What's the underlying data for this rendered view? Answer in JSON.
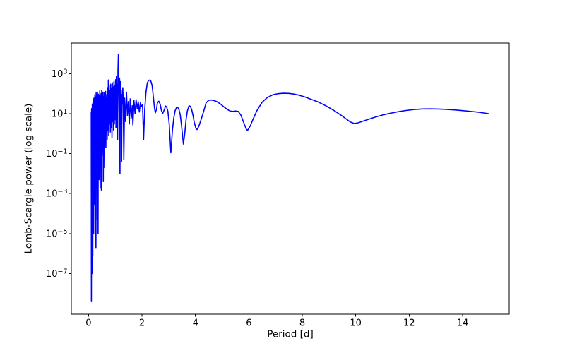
{
  "figure": {
    "background_color": "#ffffff",
    "axis_color": "#000000",
    "line_color": "#0000ff"
  },
  "chart_data": {
    "type": "line",
    "title": "",
    "xlabel": "Period [d]",
    "ylabel": "Lomb-Scargle power (log scale)",
    "yscale": "log",
    "grid": false,
    "legend": null,
    "xlim": [
      -0.645,
      15.745
    ],
    "ylog_lim": [
      -9.03,
      4.53
    ],
    "x_ticks": [
      0,
      2,
      4,
      6,
      8,
      10,
      12,
      14
    ],
    "y_ticks": [
      {
        "exponent": 3,
        "label": "10³"
      },
      {
        "exponent": 1,
        "label": "10¹"
      },
      {
        "exponent": -1,
        "label": "10⁻¹"
      },
      {
        "exponent": -3,
        "label": "10⁻³"
      },
      {
        "exponent": -5,
        "label": "10⁻⁵"
      },
      {
        "exponent": -7,
        "label": "10⁻⁷"
      }
    ],
    "series": [
      {
        "name": "lomb-scargle-power",
        "color": "#0000ff",
        "points": [
          [
            0.1,
            12
          ],
          [
            0.1065,
            4e-09
          ],
          [
            0.113,
            18
          ],
          [
            0.1195,
            1e-06
          ],
          [
            0.126,
            14
          ],
          [
            0.1325,
            1e-07
          ],
          [
            0.139,
            30
          ],
          [
            0.1455,
            3e-05
          ],
          [
            0.152,
            22
          ],
          [
            0.1585,
            8e-07
          ],
          [
            0.165,
            40
          ],
          [
            0.1715,
            0.0002
          ],
          [
            0.178,
            33
          ],
          [
            0.1845,
            1e-05
          ],
          [
            0.191,
            55
          ],
          [
            0.1975,
            0.0015
          ],
          [
            0.204,
            60
          ],
          [
            0.212,
            0.0003
          ],
          [
            0.22,
            45
          ],
          [
            0.228,
            0.002
          ],
          [
            0.236,
            90
          ],
          [
            0.244,
            1e-05
          ],
          [
            0.252,
            55
          ],
          [
            0.26,
            0.008
          ],
          [
            0.268,
            70
          ],
          [
            0.276,
            2e-06
          ],
          [
            0.284,
            110
          ],
          [
            0.292,
            0.002
          ],
          [
            0.3,
            65
          ],
          [
            0.308,
            0.02
          ],
          [
            0.316,
            85
          ],
          [
            0.324,
            5e-05
          ],
          [
            0.332,
            120
          ],
          [
            0.34,
            0.008
          ],
          [
            0.348,
            70
          ],
          [
            0.356,
            1e-05
          ],
          [
            0.364,
            95
          ],
          [
            0.372,
            0.03
          ],
          [
            0.38,
            60
          ],
          [
            0.388,
            0.005
          ],
          [
            0.396,
            80
          ],
          [
            0.408,
            0.05
          ],
          [
            0.42,
            140
          ],
          [
            0.432,
            0.002
          ],
          [
            0.444,
            75
          ],
          [
            0.456,
            0.2
          ],
          [
            0.468,
            100
          ],
          [
            0.48,
            0.0015
          ],
          [
            0.492,
            150
          ],
          [
            0.504,
            0.08
          ],
          [
            0.516,
            90
          ],
          [
            0.528,
            0.4
          ],
          [
            0.54,
            120
          ],
          [
            0.552,
            0.004
          ],
          [
            0.564,
            70
          ],
          [
            0.576,
            0.6
          ],
          [
            0.588,
            110
          ],
          [
            0.6,
            0.02
          ],
          [
            0.612,
            80
          ],
          [
            0.624,
            1.0
          ],
          [
            0.636,
            130
          ],
          [
            0.648,
            0.2
          ],
          [
            0.66,
            60
          ],
          [
            0.672,
            2.0
          ],
          [
            0.684,
            90
          ],
          [
            0.696,
            0.5
          ],
          [
            0.711,
            200
          ],
          [
            0.726,
            1.5
          ],
          [
            0.741,
            480
          ],
          [
            0.756,
            0.8
          ],
          [
            0.771,
            250
          ],
          [
            0.786,
            3
          ],
          [
            0.801,
            150
          ],
          [
            0.816,
            1.2
          ],
          [
            0.831,
            300
          ],
          [
            0.846,
            2
          ],
          [
            0.861,
            180
          ],
          [
            0.876,
            0.6
          ],
          [
            0.891,
            350
          ],
          [
            0.906,
            4
          ],
          [
            0.921,
            220
          ],
          [
            0.936,
            1.5
          ],
          [
            0.951,
            400
          ],
          [
            0.966,
            3
          ],
          [
            0.981,
            260
          ],
          [
            0.996,
            5
          ],
          [
            1.011,
            500
          ],
          [
            1.026,
            2
          ],
          [
            1.041,
            700
          ],
          [
            1.056,
            8
          ],
          [
            1.071,
            300
          ],
          [
            1.086,
            0.5
          ],
          [
            1.101,
            1500
          ],
          [
            1.116,
            9500
          ],
          [
            1.131,
            1200
          ],
          [
            1.146,
            12
          ],
          [
            1.161,
            600
          ],
          [
            1.176,
            0.01
          ],
          [
            1.191,
            400
          ],
          [
            1.206,
            25
          ],
          [
            1.221,
            150
          ],
          [
            1.236,
            0.04
          ],
          [
            1.251,
            90
          ],
          [
            1.266,
            30
          ],
          [
            1.281,
            200
          ],
          [
            1.296,
            45
          ],
          [
            1.32,
            0.05
          ],
          [
            1.35,
            60
          ],
          [
            1.385,
            4
          ],
          [
            1.42,
            120
          ],
          [
            1.455,
            8
          ],
          [
            1.49,
            40
          ],
          [
            1.525,
            3
          ],
          [
            1.56,
            55
          ],
          [
            1.6,
            6
          ],
          [
            1.635,
            25
          ],
          [
            1.66,
            2.7
          ],
          [
            1.7,
            45
          ],
          [
            1.74,
            10
          ],
          [
            1.78,
            50
          ],
          [
            1.82,
            18
          ],
          [
            1.86,
            40
          ],
          [
            1.9,
            12
          ],
          [
            1.94,
            35
          ],
          [
            1.98,
            22
          ],
          [
            2.02,
            28
          ],
          [
            2.06,
            0.5
          ],
          [
            2.1,
            15
          ],
          [
            2.15,
            120
          ],
          [
            2.2,
            350
          ],
          [
            2.25,
            460
          ],
          [
            2.29,
            480
          ],
          [
            2.33,
            430
          ],
          [
            2.38,
            250
          ],
          [
            2.43,
            60
          ],
          [
            2.47,
            18
          ],
          [
            2.5,
            11
          ],
          [
            2.54,
            16
          ],
          [
            2.58,
            35
          ],
          [
            2.63,
            42
          ],
          [
            2.68,
            30
          ],
          [
            2.73,
            14
          ],
          [
            2.78,
            10.5
          ],
          [
            2.83,
            15
          ],
          [
            2.88,
            24
          ],
          [
            2.92,
            22
          ],
          [
            2.97,
            13
          ],
          [
            3.02,
            3
          ],
          [
            3.08,
            0.11
          ],
          [
            3.14,
            1.5
          ],
          [
            3.19,
            6
          ],
          [
            3.24,
            14
          ],
          [
            3.29,
            20
          ],
          [
            3.33,
            21
          ],
          [
            3.38,
            17
          ],
          [
            3.43,
            9
          ],
          [
            3.48,
            2.5
          ],
          [
            3.55,
            0.3
          ],
          [
            3.6,
            1.0
          ],
          [
            3.65,
            5
          ],
          [
            3.7,
            14
          ],
          [
            3.76,
            25
          ],
          [
            3.81,
            23
          ],
          [
            3.86,
            16
          ],
          [
            3.91,
            8
          ],
          [
            3.96,
            3.5
          ],
          [
            4.02,
            1.8
          ],
          [
            4.06,
            1.6
          ],
          [
            4.12,
            2.2
          ],
          [
            4.2,
            4.5
          ],
          [
            4.3,
            12
          ],
          [
            4.4,
            35
          ],
          [
            4.5,
            47
          ],
          [
            4.6,
            48
          ],
          [
            4.7,
            45
          ],
          [
            4.8,
            40
          ],
          [
            4.9,
            33
          ],
          [
            5.0,
            26
          ],
          [
            5.1,
            20
          ],
          [
            5.2,
            16
          ],
          [
            5.3,
            13.5
          ],
          [
            5.4,
            13
          ],
          [
            5.5,
            13.5
          ],
          [
            5.6,
            13
          ],
          [
            5.7,
            8.5
          ],
          [
            5.8,
            3.8
          ],
          [
            5.9,
            1.7
          ],
          [
            5.95,
            1.45
          ],
          [
            6.05,
            2.4
          ],
          [
            6.15,
            5
          ],
          [
            6.3,
            14
          ],
          [
            6.5,
            38
          ],
          [
            6.7,
            65
          ],
          [
            6.9,
            88
          ],
          [
            7.1,
            100
          ],
          [
            7.3,
            105
          ],
          [
            7.5,
            103
          ],
          [
            7.7,
            95
          ],
          [
            7.9,
            82
          ],
          [
            8.1,
            68
          ],
          [
            8.3,
            54
          ],
          [
            8.6,
            38
          ],
          [
            8.9,
            24
          ],
          [
            9.2,
            14
          ],
          [
            9.5,
            7.5
          ],
          [
            9.8,
            3.8
          ],
          [
            9.95,
            3.2
          ],
          [
            10.1,
            3.5
          ],
          [
            10.4,
            4.8
          ],
          [
            10.7,
            6.5
          ],
          [
            11.0,
            8.5
          ],
          [
            11.3,
            10.5
          ],
          [
            11.6,
            12.5
          ],
          [
            11.9,
            14.5
          ],
          [
            12.2,
            16.2
          ],
          [
            12.5,
            17.2
          ],
          [
            12.8,
            17.4
          ],
          [
            13.1,
            17.0
          ],
          [
            13.4,
            16.3
          ],
          [
            13.7,
            15.3
          ],
          [
            14.0,
            14.2
          ],
          [
            14.3,
            13.0
          ],
          [
            14.6,
            11.8
          ],
          [
            14.8,
            10.8
          ],
          [
            15.0,
            9.7
          ]
        ]
      }
    ]
  }
}
